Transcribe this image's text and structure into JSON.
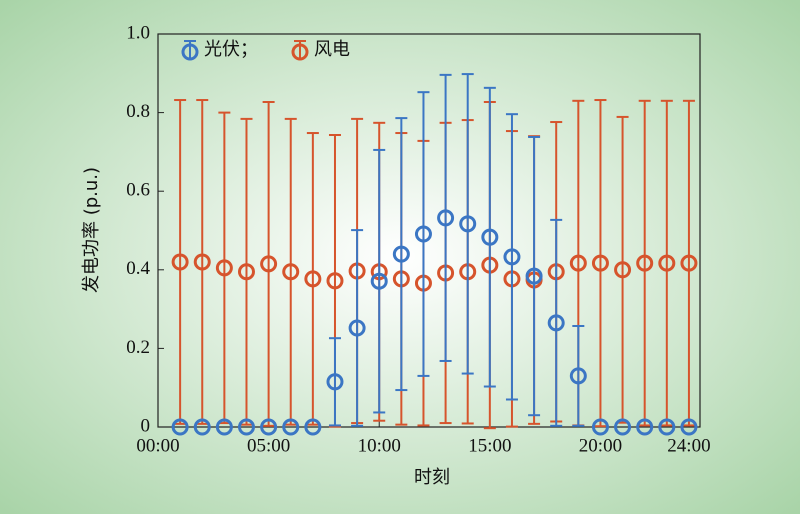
{
  "chart_data": {
    "type": "errorbar",
    "x_label": "时刻",
    "y_label": "发电功率 (p.u.)",
    "x": [
      1,
      2,
      3,
      4,
      5,
      6,
      7,
      8,
      9,
      10,
      11,
      12,
      13,
      14,
      15,
      16,
      17,
      18,
      19,
      20,
      21,
      22,
      23,
      24
    ],
    "series": [
      {
        "name": "光伏；",
        "color": "#3b76c4",
        "values": [
          0,
          0,
          0,
          0,
          0,
          0,
          0,
          0.115,
          0.252,
          0.371,
          0.44,
          0.491,
          0.532,
          0.517,
          0.483,
          0.433,
          0.384,
          0.265,
          0.13,
          0,
          0,
          0,
          0,
          0
        ],
        "errors": [
          0,
          0,
          0,
          0,
          0,
          0,
          0,
          0.111,
          0.249,
          0.334,
          0.346,
          0.361,
          0.364,
          0.381,
          0.38,
          0.363,
          0.354,
          0.262,
          0.127,
          0,
          0,
          0,
          0,
          0
        ]
      },
      {
        "name": "风电",
        "color": "#d6542c",
        "values": [
          0.42,
          0.42,
          0.405,
          0.395,
          0.415,
          0.395,
          0.377,
          0.372,
          0.397,
          0.395,
          0.377,
          0.366,
          0.392,
          0.395,
          0.412,
          0.377,
          0.374,
          0.395,
          0.417,
          0.417,
          0.4,
          0.417,
          0.417,
          0.417
        ],
        "errors": [
          0.412,
          0.412,
          0.395,
          0.389,
          0.412,
          0.389,
          0.371,
          0.371,
          0.387,
          0.379,
          0.371,
          0.362,
          0.382,
          0.386,
          0.415,
          0.376,
          0.366,
          0.381,
          0.413,
          0.415,
          0.389,
          0.413,
          0.413,
          0.413
        ]
      }
    ],
    "xlim": [
      0,
      24.5
    ],
    "ylim": [
      0,
      1
    ],
    "xticks": [
      {
        "value": 0,
        "label": "00:00"
      },
      {
        "value": 5,
        "label": "05:00"
      },
      {
        "value": 10,
        "label": "10:00"
      },
      {
        "value": 15,
        "label": "15:00"
      },
      {
        "value": 20,
        "label": "20:00"
      },
      {
        "value": 24,
        "label": "24:00"
      }
    ],
    "yticks": [
      0,
      0.2,
      0.4,
      0.6,
      0.8,
      {
        "value": 1,
        "label": "1.0"
      }
    ]
  }
}
